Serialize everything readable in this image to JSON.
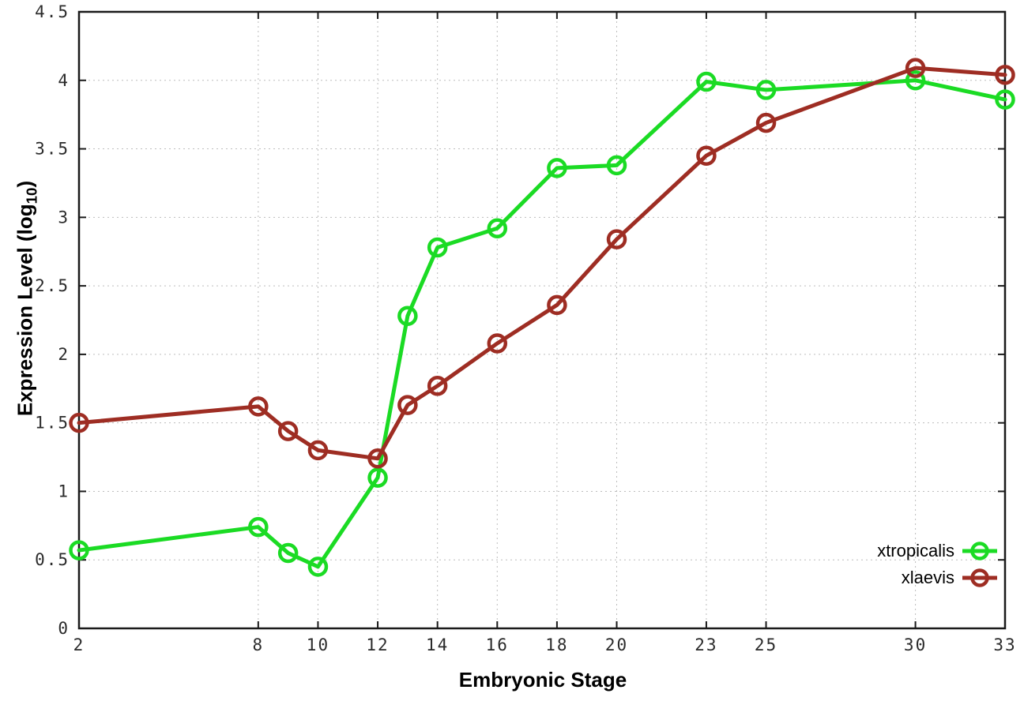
{
  "chart_data": {
    "type": "line",
    "title": "",
    "xlabel": "Embryonic Stage",
    "ylabel": "Expression Level (log10)",
    "ylabel_parts": {
      "prefix": "Expression Level (log",
      "sub": "10",
      "suffix": ")"
    },
    "xlim": [
      2,
      33
    ],
    "ylim": [
      0,
      4.5
    ],
    "x_ticks": [
      2,
      8,
      10,
      12,
      14,
      16,
      18,
      20,
      23,
      25,
      30,
      33
    ],
    "y_ticks": [
      0,
      0.5,
      1,
      1.5,
      2,
      2.5,
      3,
      3.5,
      4,
      4.5
    ],
    "grid": true,
    "grid_style": "dotted",
    "legend_position": "bottom-right",
    "x": [
      2,
      8,
      9,
      10,
      12,
      13,
      14,
      16,
      18,
      20,
      23,
      25,
      30,
      33
    ],
    "series": [
      {
        "name": "xtropicalis",
        "color": "#1bdb24",
        "values": [
          0.57,
          0.74,
          0.55,
          0.45,
          1.1,
          2.28,
          2.78,
          2.92,
          3.36,
          3.38,
          3.99,
          3.93,
          4.0,
          3.86
        ]
      },
      {
        "name": "xlaevis",
        "color": "#9e2d23",
        "values": [
          1.5,
          1.62,
          1.44,
          1.3,
          1.24,
          1.63,
          1.77,
          2.08,
          2.36,
          2.84,
          3.45,
          3.69,
          4.09,
          4.04
        ]
      }
    ]
  }
}
